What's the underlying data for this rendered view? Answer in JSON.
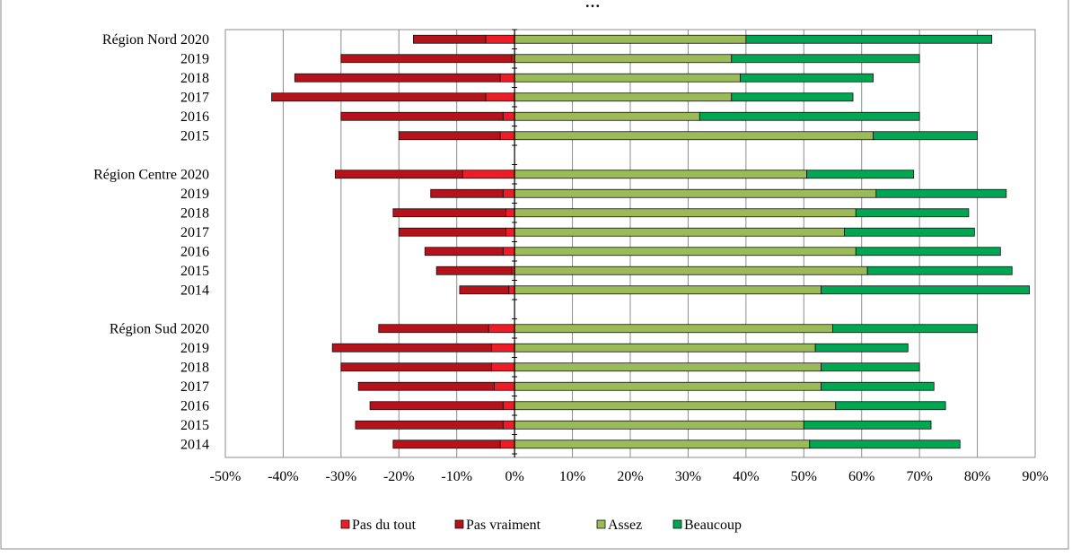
{
  "chart_data": {
    "type": "bar",
    "orientation": "horizontal",
    "stacked": "diverging",
    "title": "…epondent … … … … … y… … … (g…g…p…p…)",
    "title_visible_fragment": "…",
    "xlim": [
      -50,
      90
    ],
    "x_ticks": [
      "-50%",
      "-40%",
      "-30%",
      "-20%",
      "-10%",
      "0%",
      "10%",
      "20%",
      "30%",
      "40%",
      "50%",
      "60%",
      "70%",
      "80%",
      "90%"
    ],
    "grid": true,
    "legend_position": "bottom",
    "series": [
      {
        "name": "Pas du tout",
        "color": "#ee1c25"
      },
      {
        "name": "Pas vraiment",
        "color": "#b5121b"
      },
      {
        "name": "Assez",
        "color": "#9bbb59"
      },
      {
        "name": "Beaucoup",
        "color": "#00a651"
      }
    ],
    "groups": [
      {
        "region": "Région Nord",
        "rows": [
          {
            "year": "2020",
            "pas_du_tout": -5,
            "pas_vraiment": -12.5,
            "assez": 40,
            "beaucoup": 42.5
          },
          {
            "year": "2019",
            "pas_du_tout": -0.5,
            "pas_vraiment": -29.5,
            "assez": 37.5,
            "beaucoup": 32.5
          },
          {
            "year": "2018",
            "pas_du_tout": -2.5,
            "pas_vraiment": -35.5,
            "assez": 39,
            "beaucoup": 23
          },
          {
            "year": "2017",
            "pas_du_tout": -5,
            "pas_vraiment": -37,
            "assez": 37.5,
            "beaucoup": 21
          },
          {
            "year": "2016",
            "pas_du_tout": -2,
            "pas_vraiment": -28,
            "assez": 32,
            "beaucoup": 38
          },
          {
            "year": "2015",
            "pas_du_tout": -2.5,
            "pas_vraiment": -17.5,
            "assez": 62,
            "beaucoup": 18
          }
        ]
      },
      {
        "region": "Région Centre",
        "rows": [
          {
            "year": "2020",
            "pas_du_tout": -9,
            "pas_vraiment": -22,
            "assez": 50.5,
            "beaucoup": 18.5
          },
          {
            "year": "2019",
            "pas_du_tout": -2,
            "pas_vraiment": -12.5,
            "assez": 62.5,
            "beaucoup": 22.5
          },
          {
            "year": "2018",
            "pas_du_tout": -1.5,
            "pas_vraiment": -19.5,
            "assez": 59,
            "beaucoup": 19.5
          },
          {
            "year": "2017",
            "pas_du_tout": -1.5,
            "pas_vraiment": -18.5,
            "assez": 57,
            "beaucoup": 22.5
          },
          {
            "year": "2016",
            "pas_du_tout": -2,
            "pas_vraiment": -13.5,
            "assez": 59,
            "beaucoup": 25
          },
          {
            "year": "2015",
            "pas_du_tout": -0.5,
            "pas_vraiment": -13,
            "assez": 61,
            "beaucoup": 25
          },
          {
            "year": "2014",
            "pas_du_tout": -1,
            "pas_vraiment": -8.5,
            "assez": 53,
            "beaucoup": 36
          }
        ]
      },
      {
        "region": "Région Sud",
        "rows": [
          {
            "year": "2020",
            "pas_du_tout": -4.5,
            "pas_vraiment": -19,
            "assez": 55,
            "beaucoup": 25
          },
          {
            "year": "2019",
            "pas_du_tout": -4,
            "pas_vraiment": -27.5,
            "assez": 52,
            "beaucoup": 16
          },
          {
            "year": "2018",
            "pas_du_tout": -4,
            "pas_vraiment": -26,
            "assez": 53,
            "beaucoup": 17
          },
          {
            "year": "2017",
            "pas_du_tout": -3.5,
            "pas_vraiment": -23.5,
            "assez": 53,
            "beaucoup": 19.5
          },
          {
            "year": "2016",
            "pas_du_tout": -2,
            "pas_vraiment": -23,
            "assez": 55.5,
            "beaucoup": 19
          },
          {
            "year": "2015",
            "pas_du_tout": -2,
            "pas_vraiment": -25.5,
            "assez": 50,
            "beaucoup": 22
          },
          {
            "year": "2014",
            "pas_du_tout": -2.5,
            "pas_vraiment": -18.5,
            "assez": 51,
            "beaucoup": 26
          }
        ]
      }
    ]
  }
}
